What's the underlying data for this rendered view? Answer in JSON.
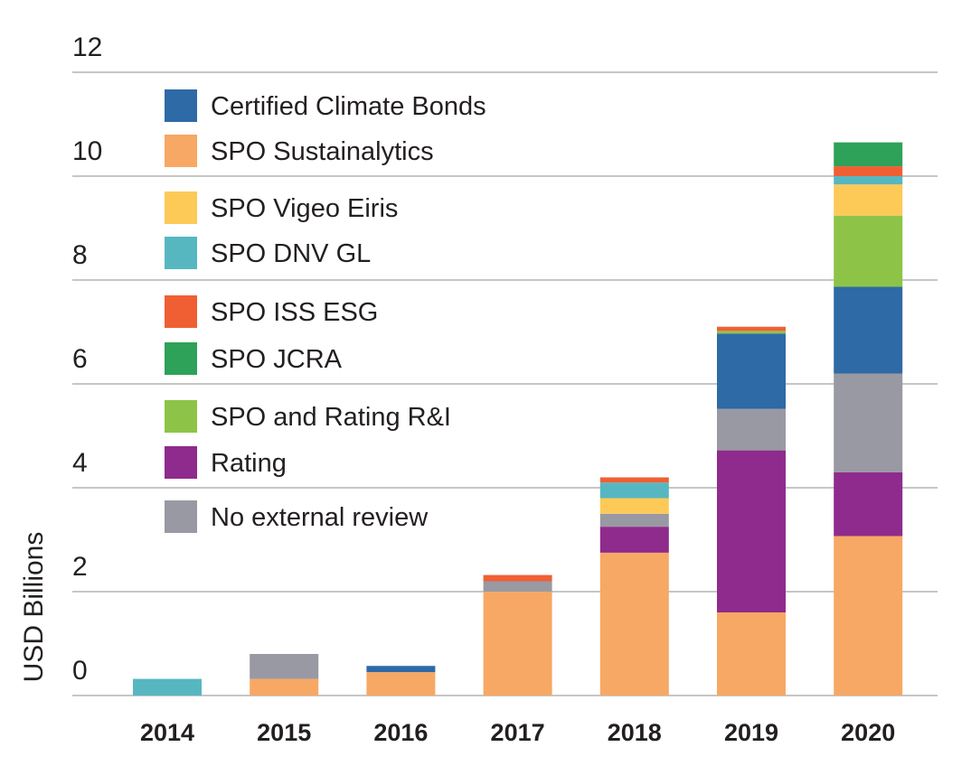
{
  "chart_data": {
    "type": "bar",
    "stacked": true,
    "title": "",
    "xlabel": "",
    "ylabel": "USD Billions",
    "ylim": [
      0,
      12
    ],
    "yticks": [
      "0",
      "2",
      "4",
      "6",
      "8",
      "10",
      "12"
    ],
    "grid": true,
    "legend_position": "top-left",
    "categories": [
      "2014",
      "2015",
      "2016",
      "2017",
      "2018",
      "2019",
      "2020"
    ],
    "series": [
      {
        "name": "No external review",
        "color": "#9999a3",
        "values": [
          0,
          0.48,
          0,
          0.2,
          0.25,
          0.8,
          1.9
        ]
      },
      {
        "name": "Certified Climate Bonds",
        "color": "#2e6aa6",
        "values": [
          0,
          0,
          0.12,
          0,
          0,
          1.45,
          1.67
        ]
      },
      {
        "name": "SPO Sustainalytics",
        "color": "#f7a864",
        "values": [
          0,
          0.32,
          0.45,
          2.0,
          2.75,
          1.6,
          3.07
        ]
      },
      {
        "name": "SPO Vigeo Eiris",
        "color": "#fdca57",
        "values": [
          0,
          0,
          0,
          0,
          0.3,
          0,
          0.6
        ]
      },
      {
        "name": "SPO DNV GL",
        "color": "#56b7c1",
        "values": [
          0.32,
          0,
          0,
          0,
          0.3,
          0,
          0.16
        ]
      },
      {
        "name": "SPO ISS ESG",
        "color": "#f05f33",
        "values": [
          0,
          0,
          0,
          0.12,
          0.1,
          0.08,
          0.19
        ]
      },
      {
        "name": "SPO JCRA",
        "color": "#2ea258",
        "values": [
          0,
          0,
          0,
          0,
          0,
          0,
          0.46
        ]
      },
      {
        "name": "SPO and Rating R&I",
        "color": "#8dc447",
        "values": [
          0,
          0,
          0,
          0,
          0,
          0.05,
          1.37
        ]
      },
      {
        "name": "Rating",
        "color": "#8e2b8c",
        "values": [
          0,
          0,
          0,
          0,
          0.5,
          3.12,
          1.23
        ]
      }
    ],
    "stack_order": [
      [
        "SPO DNV GL"
      ],
      [
        "SPO Sustainalytics",
        "No external review"
      ],
      [
        "SPO Sustainalytics",
        "Certified Climate Bonds"
      ],
      [
        "SPO Sustainalytics",
        "No external review",
        "SPO DNV GL",
        "SPO ISS ESG"
      ],
      [
        "SPO Sustainalytics",
        "Rating",
        "No external review",
        "SPO Vigeo Eiris",
        "SPO DNV GL",
        "SPO ISS ESG"
      ],
      [
        "SPO Sustainalytics",
        "Rating",
        "No external review",
        "Certified Climate Bonds",
        "SPO and Rating R&I",
        "SPO ISS ESG"
      ],
      [
        "SPO Sustainalytics",
        "Rating",
        "No external review",
        "Certified Climate Bonds",
        "SPO and Rating R&I",
        "SPO Vigeo Eiris",
        "SPO DNV GL",
        "SPO ISS ESG",
        "SPO JCRA"
      ]
    ],
    "legend_order": [
      "Certified Climate Bonds",
      "SPO Sustainalytics",
      "SPO Vigeo Eiris",
      "SPO DNV GL",
      "SPO ISS ESG",
      "SPO JCRA",
      "SPO and Rating R&I",
      "Rating",
      "No external review"
    ]
  }
}
